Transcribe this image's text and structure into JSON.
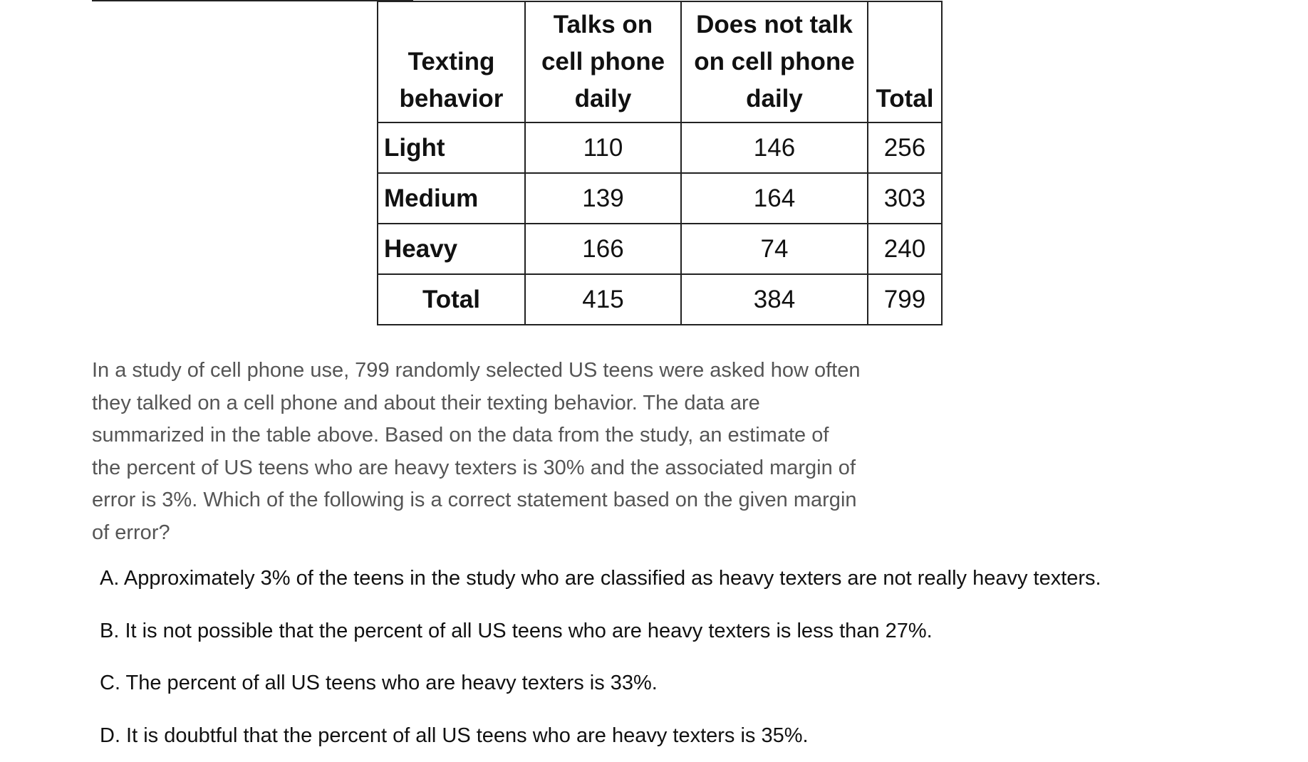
{
  "table": {
    "headers": [
      "Texting behavior",
      "Talks on cell phone daily",
      "Does not talk on cell phone daily",
      "Total"
    ],
    "rows": [
      {
        "label": "Light",
        "talks": "110",
        "does_not_talk": "146",
        "total": "256"
      },
      {
        "label": "Medium",
        "talks": "139",
        "does_not_talk": "164",
        "total": "303"
      },
      {
        "label": "Heavy",
        "talks": "166",
        "does_not_talk": "74",
        "total": "240"
      },
      {
        "label": "Total",
        "talks": "415",
        "does_not_talk": "384",
        "total": "799"
      }
    ]
  },
  "question": {
    "prompt": "In a study of cell phone use, 799 randomly selected US teens were asked how often they talked on a cell phone and about their texting behavior. The data are summarized in the table above. Based on the data from the study, an estimate of the percent of US teens who are heavy texters is 30% and the associated margin of error is 3%. Which of the following is a correct statement based on the given margin of error?",
    "choices": [
      "A. Approximately 3% of the teens in the study who are classified as heavy texters are not really heavy texters.",
      "B. It is not possible that the percent of all US teens who are heavy texters is less than 27%.",
      "C. The percent of all US teens who are heavy texters is 33%.",
      "D. It is doubtful that the percent of all US teens who are heavy texters is 35%."
    ]
  }
}
